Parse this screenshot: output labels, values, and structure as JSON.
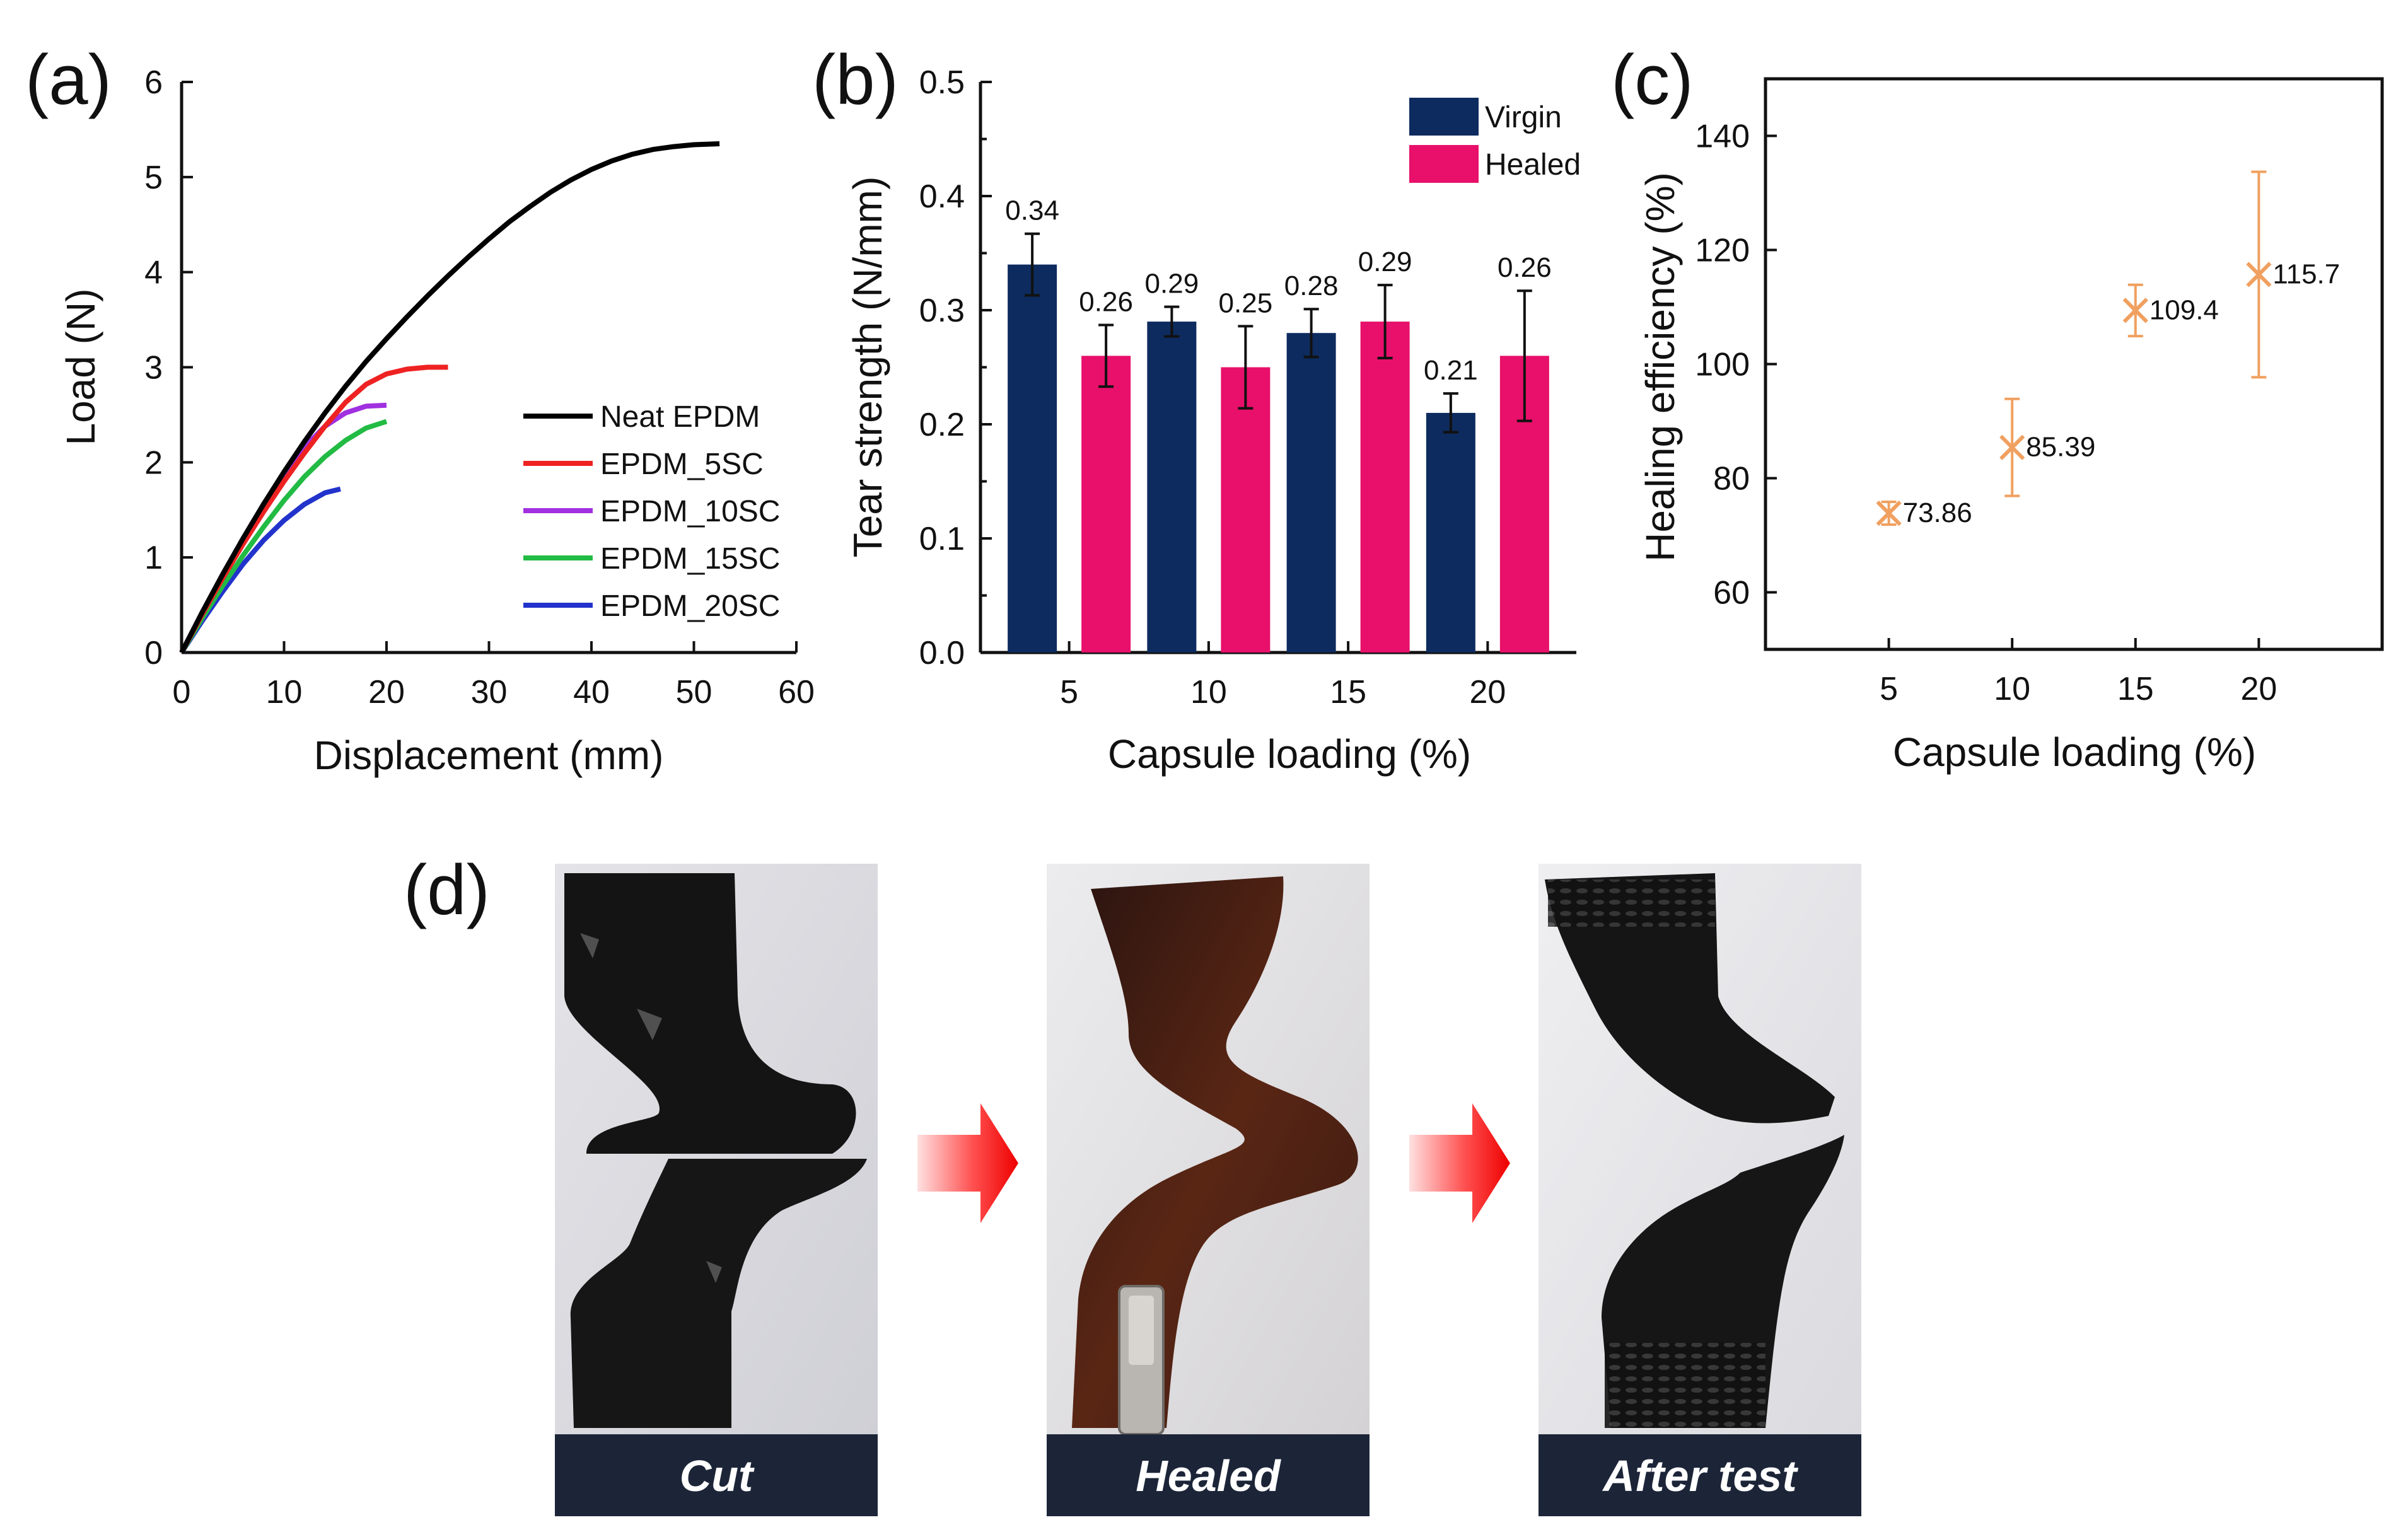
{
  "figure": {
    "panels": {
      "a": "(a)",
      "b": "(b)",
      "c": "(c)",
      "d": "(d)"
    },
    "photos": [
      {
        "caption": "Cut"
      },
      {
        "caption": "Healed"
      },
      {
        "caption": "After test"
      }
    ]
  },
  "chart_data": [
    {
      "panel": "(a)",
      "type": "line",
      "xlabel": "Displacement (mm)",
      "ylabel": "Load (N)",
      "xlim": [
        0,
        60
      ],
      "ylim": [
        0,
        6
      ],
      "xticks": [
        "0",
        "10",
        "20",
        "30",
        "40",
        "50",
        "60"
      ],
      "yticks": [
        "0",
        "1",
        "2",
        "3",
        "4",
        "5",
        "6"
      ],
      "legend_position": "bottom-right",
      "series": [
        {
          "name": "Neat EPDM",
          "color": "#000000",
          "x": [
            0,
            2,
            4,
            6,
            8,
            10,
            12,
            14,
            16,
            18,
            20,
            22,
            24,
            26,
            28,
            30,
            32,
            34,
            36,
            38,
            40,
            42,
            44,
            46,
            48,
            50,
            52.5
          ],
          "y": [
            0,
            0.42,
            0.82,
            1.2,
            1.56,
            1.9,
            2.22,
            2.52,
            2.8,
            3.06,
            3.3,
            3.53,
            3.75,
            3.96,
            4.16,
            4.35,
            4.53,
            4.69,
            4.84,
            4.97,
            5.08,
            5.17,
            5.24,
            5.29,
            5.32,
            5.34,
            5.35
          ]
        },
        {
          "name": "EPDM_5SC",
          "color": "#ee2222",
          "x": [
            0,
            2,
            4,
            6,
            8,
            10,
            12,
            14,
            16,
            18,
            20,
            22,
            24,
            26
          ],
          "y": [
            0,
            0.4,
            0.78,
            1.14,
            1.48,
            1.8,
            2.1,
            2.38,
            2.63,
            2.82,
            2.93,
            2.98,
            3.0,
            3.0
          ]
        },
        {
          "name": "EPDM_10SC",
          "color": "#a030e0",
          "x": [
            0,
            2,
            4,
            6,
            8,
            10,
            12,
            14,
            16,
            18,
            20
          ],
          "y": [
            0,
            0.42,
            0.82,
            1.2,
            1.56,
            1.88,
            2.16,
            2.38,
            2.52,
            2.59,
            2.6
          ]
        },
        {
          "name": "EPDM_15SC",
          "color": "#22bb44",
          "x": [
            0,
            2,
            4,
            6,
            8,
            10,
            12,
            14,
            16,
            18,
            20
          ],
          "y": [
            0,
            0.36,
            0.7,
            1.02,
            1.32,
            1.6,
            1.85,
            2.06,
            2.23,
            2.36,
            2.43
          ]
        },
        {
          "name": "EPDM_20SC",
          "color": "#2233cc",
          "x": [
            0,
            2,
            4,
            6,
            8,
            10,
            12,
            14,
            15.5
          ],
          "y": [
            0,
            0.33,
            0.64,
            0.93,
            1.18,
            1.39,
            1.56,
            1.68,
            1.72
          ]
        }
      ]
    },
    {
      "panel": "(b)",
      "type": "bar",
      "xlabel": "Capsule loading (%)",
      "ylabel": "Tear strength (N/mm)",
      "ylim": [
        0,
        0.5
      ],
      "yticks": [
        "0.0",
        "0.1",
        "0.2",
        "0.3",
        "0.4",
        "0.5"
      ],
      "categories": [
        "5",
        "10",
        "15",
        "20"
      ],
      "legend_position": "top-right",
      "series": [
        {
          "name": "Virgin",
          "color": "#0d2b5e",
          "values": [
            0.34,
            0.29,
            0.28,
            0.21
          ],
          "errors": [
            0.027,
            0.013,
            0.021,
            0.017
          ],
          "labels": [
            "0.34",
            "0.29",
            "0.28",
            "0.21"
          ]
        },
        {
          "name": "Healed",
          "color": "#e8106a",
          "values": [
            0.26,
            0.25,
            0.29,
            0.26
          ],
          "errors": [
            0.027,
            0.036,
            0.032,
            0.057
          ],
          "labels": [
            "0.26",
            "0.25",
            "0.29",
            "0.26"
          ]
        }
      ]
    },
    {
      "panel": "(c)",
      "type": "scatter",
      "xlabel": "Capsule loading (%)",
      "ylabel": "Healing efficiency (%)",
      "xlim": [
        0,
        25
      ],
      "ylim": [
        50,
        150
      ],
      "xticks": [
        "5",
        "10",
        "15",
        "20"
      ],
      "yticks": [
        "60",
        "80",
        "100",
        "120",
        "140"
      ],
      "color": "#f0a060",
      "x": [
        5,
        10,
        15,
        20
      ],
      "y": [
        73.86,
        85.39,
        109.4,
        115.7
      ],
      "errors": [
        2,
        8.5,
        4.5,
        18
      ],
      "labels": [
        "73.86",
        "85.39",
        "109.4",
        "115.7"
      ]
    }
  ]
}
